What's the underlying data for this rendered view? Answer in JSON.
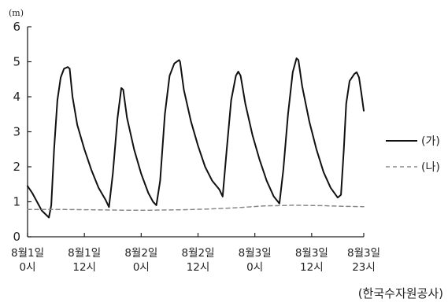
{
  "chart_data": {
    "type": "line",
    "ylabel": "(m)",
    "ylim": [
      0,
      6
    ],
    "yticks": [
      "0",
      "1",
      "2",
      "3",
      "4",
      "5",
      "6"
    ],
    "xlim": [
      0,
      71
    ],
    "xticks": [
      {
        "x": 0,
        "line1": "8월1일",
        "line2": "0시"
      },
      {
        "x": 12,
        "line1": "8월1일",
        "line2": "12시"
      },
      {
        "x": 24,
        "line1": "8월2일",
        "line2": "0시"
      },
      {
        "x": 36,
        "line1": "8월2일",
        "line2": "12시"
      },
      {
        "x": 48,
        "line1": "8월3일",
        "line2": "0시"
      },
      {
        "x": 60,
        "line1": "8월3일",
        "line2": "12시"
      },
      {
        "x": 71,
        "line1": "8월3일",
        "line2": "23시"
      }
    ],
    "series": [
      {
        "name": "(가)",
        "color": "#111111",
        "style": "solid",
        "points": [
          [
            0,
            1.45
          ],
          [
            1,
            1.25
          ],
          [
            2,
            1.0
          ],
          [
            3,
            0.75
          ],
          [
            4.5,
            0.55
          ],
          [
            5,
            0.9
          ],
          [
            5.6,
            2.5
          ],
          [
            6.3,
            3.9
          ],
          [
            7,
            4.55
          ],
          [
            7.7,
            4.8
          ],
          [
            8.5,
            4.85
          ],
          [
            8.9,
            4.8
          ],
          [
            9.5,
            4.0
          ],
          [
            10.5,
            3.2
          ],
          [
            12,
            2.5
          ],
          [
            13.5,
            1.9
          ],
          [
            15,
            1.4
          ],
          [
            16.5,
            1.05
          ],
          [
            17.2,
            0.85
          ],
          [
            18,
            1.8
          ],
          [
            19,
            3.4
          ],
          [
            19.8,
            4.25
          ],
          [
            20.2,
            4.2
          ],
          [
            21,
            3.4
          ],
          [
            22.5,
            2.5
          ],
          [
            24,
            1.8
          ],
          [
            25.5,
            1.25
          ],
          [
            26.5,
            1.0
          ],
          [
            27.2,
            0.9
          ],
          [
            28,
            1.6
          ],
          [
            29,
            3.5
          ],
          [
            30,
            4.6
          ],
          [
            31,
            4.95
          ],
          [
            32,
            5.05
          ],
          [
            32.2,
            5.0
          ],
          [
            33,
            4.2
          ],
          [
            34.5,
            3.3
          ],
          [
            36,
            2.6
          ],
          [
            37.5,
            2.0
          ],
          [
            39,
            1.6
          ],
          [
            40.5,
            1.35
          ],
          [
            41.2,
            1.15
          ],
          [
            42,
            2.4
          ],
          [
            43,
            3.9
          ],
          [
            44,
            4.6
          ],
          [
            44.5,
            4.72
          ],
          [
            45,
            4.6
          ],
          [
            46,
            3.8
          ],
          [
            47.5,
            2.9
          ],
          [
            49,
            2.2
          ],
          [
            50.5,
            1.6
          ],
          [
            52,
            1.15
          ],
          [
            53.2,
            0.95
          ],
          [
            54,
            1.9
          ],
          [
            55,
            3.5
          ],
          [
            56,
            4.7
          ],
          [
            56.8,
            5.1
          ],
          [
            57.2,
            5.05
          ],
          [
            58,
            4.3
          ],
          [
            59.5,
            3.3
          ],
          [
            61,
            2.5
          ],
          [
            62.5,
            1.85
          ],
          [
            64,
            1.4
          ],
          [
            65.5,
            1.12
          ],
          [
            66.2,
            1.2
          ],
          [
            66.8,
            2.5
          ],
          [
            67.3,
            3.8
          ],
          [
            68,
            4.45
          ],
          [
            69,
            4.65
          ],
          [
            69.5,
            4.7
          ],
          [
            70,
            4.55
          ],
          [
            70.5,
            4.1
          ],
          [
            71,
            3.6
          ]
        ]
      },
      {
        "name": "(나)",
        "color": "#888888",
        "style": "dashed",
        "points": [
          [
            0,
            0.78
          ],
          [
            8,
            0.78
          ],
          [
            14,
            0.77
          ],
          [
            20,
            0.76
          ],
          [
            26,
            0.76
          ],
          [
            32,
            0.77
          ],
          [
            38,
            0.79
          ],
          [
            44,
            0.83
          ],
          [
            50,
            0.88
          ],
          [
            56,
            0.9
          ],
          [
            62,
            0.89
          ],
          [
            67,
            0.87
          ],
          [
            71,
            0.86
          ]
        ]
      }
    ]
  },
  "source": "(한국수자원공사)"
}
